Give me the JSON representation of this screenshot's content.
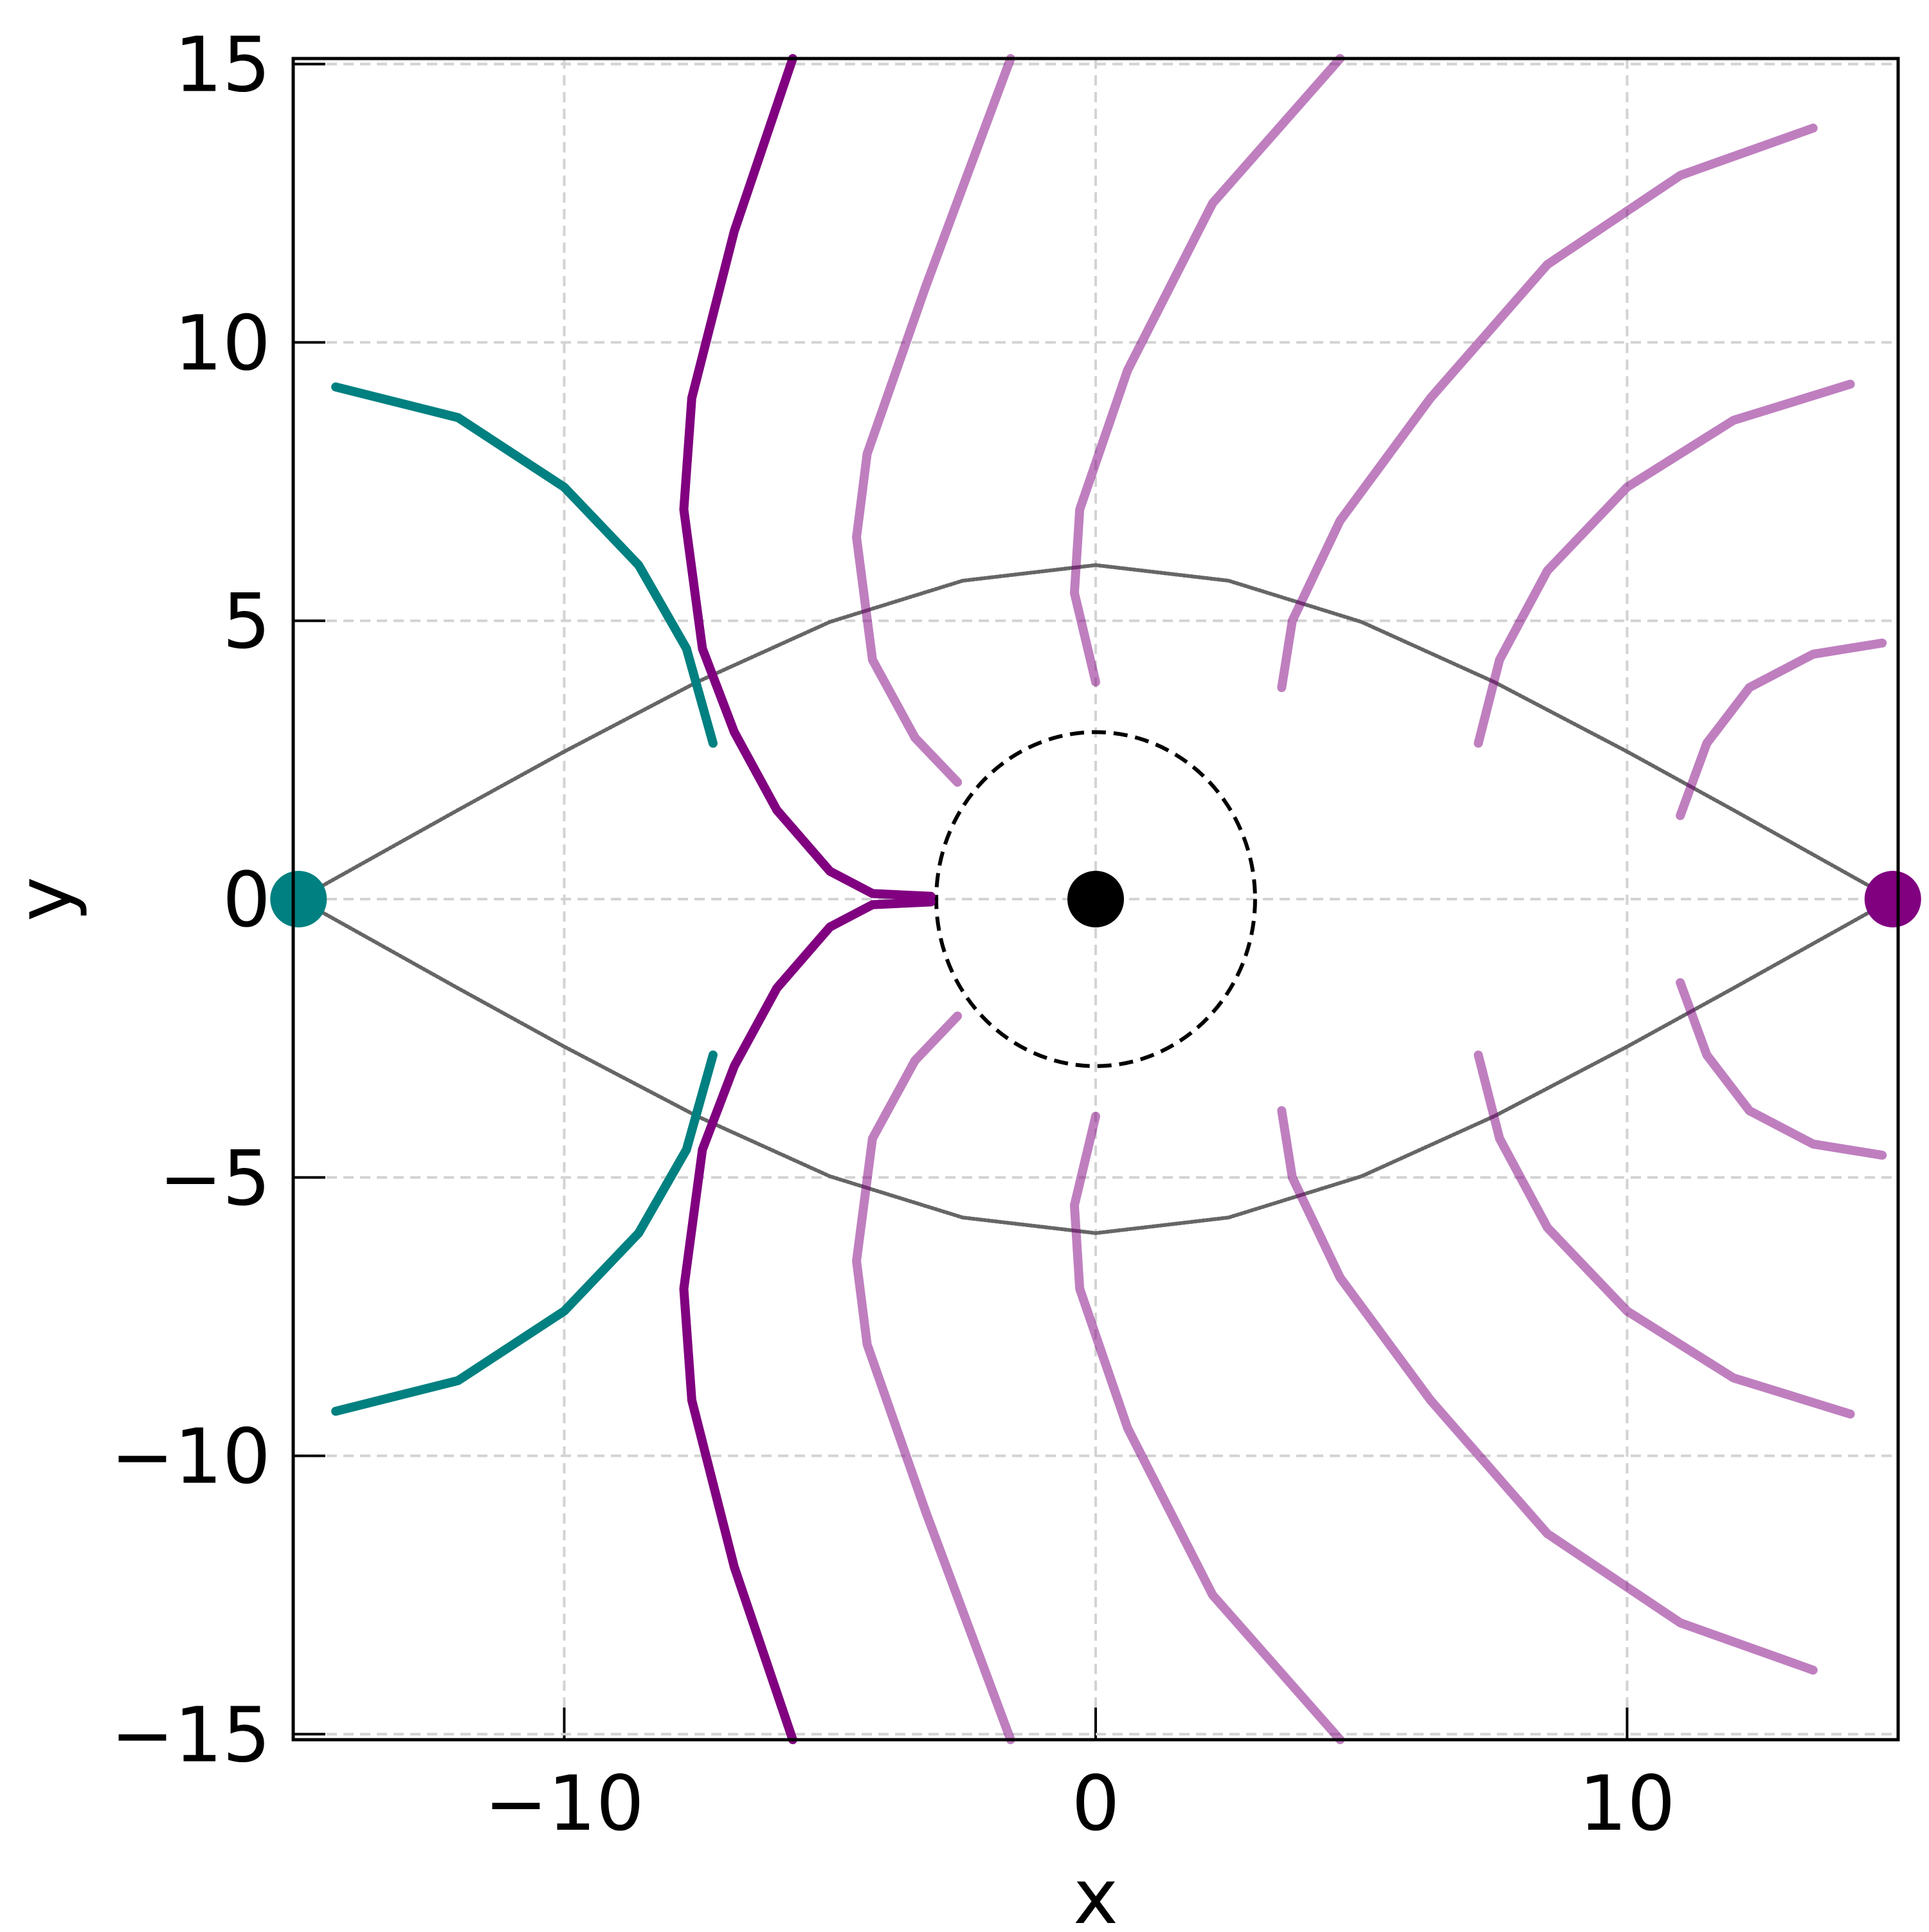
{
  "chart_data": {
    "type": "line",
    "xlabel": "x",
    "ylabel": "y",
    "xlim": [
      -15.1,
      15.1
    ],
    "ylim": [
      -15.1,
      15.1
    ],
    "xticks": [
      {
        "value": -10,
        "label": "−10"
      },
      0,
      10
    ],
    "yticks": [
      {
        "value": -15,
        "label": "−15"
      },
      {
        "value": -10,
        "label": "−10"
      },
      {
        "value": -5,
        "label": "−5"
      },
      0,
      5,
      10,
      15
    ],
    "grid": true,
    "series": [
      {
        "color": "#666666",
        "linestyle": "dotted",
        "x": [
          -15,
          -12,
          -10,
          -7.5,
          -5,
          -2.5,
          0,
          2.5,
          5,
          7.5,
          10,
          12,
          15
        ],
        "y": [
          0,
          1.6,
          2.65,
          3.9,
          4.98,
          5.72,
          6.0,
          5.72,
          4.98,
          3.9,
          2.65,
          1.6,
          0
        ]
      },
      {
        "color": "#666666",
        "linestyle": "dotted",
        "x": [
          -15,
          -12,
          -10,
          -7.5,
          -5,
          -2.5,
          0,
          2.5,
          5,
          7.5,
          10,
          12,
          15
        ],
        "y": [
          0,
          -1.6,
          -2.65,
          -3.9,
          -4.98,
          -5.72,
          -6.0,
          -5.72,
          -4.98,
          -3.9,
          -2.65,
          -1.6,
          0
        ]
      },
      {
        "color": "#008080",
        "x": [
          -14.3,
          -12,
          -10,
          -8.6,
          -7.7,
          -7.2
        ],
        "y": [
          9.2,
          8.65,
          7.4,
          6,
          4.5,
          2.8
        ]
      },
      {
        "color": "#008080",
        "x": [
          -14.3,
          -12,
          -10,
          -8.6,
          -7.7,
          -7.2
        ],
        "y": [
          -9.2,
          -8.65,
          -7.4,
          -6,
          -4.5,
          -2.8
        ]
      },
      {
        "color": "#800080",
        "x": [
          -5.7,
          -6.8,
          -7.6,
          -7.75,
          -7.4,
          -6.8,
          -6.0,
          -5.0,
          -4.2,
          -3.1
        ],
        "y": [
          15.1,
          12,
          9,
          7,
          4.5,
          3,
          1.6,
          0.5,
          0.1,
          0.05
        ]
      },
      {
        "color": "#800080",
        "x": [
          -5.7,
          -6.8,
          -7.6,
          -7.75,
          -7.4,
          -6.8,
          -6.0,
          -5.0,
          -4.2,
          -3.1
        ],
        "y": [
          -15.1,
          -12,
          -9,
          -7,
          -4.5,
          -3,
          -1.6,
          -0.5,
          -0.1,
          -0.05
        ]
      },
      {
        "color": "#800080",
        "alpha": 0.5,
        "x": [
          -1.6,
          -3.2,
          -4.3,
          -4.5,
          -4.2,
          -3.4,
          -2.6
        ],
        "y": [
          15.1,
          11,
          8,
          6.5,
          4.3,
          2.9,
          2.1
        ]
      },
      {
        "color": "#800080",
        "alpha": 0.5,
        "x": [
          -1.6,
          -3.2,
          -4.3,
          -4.5,
          -4.2,
          -3.4,
          -2.6
        ],
        "y": [
          -15.1,
          -11,
          -8,
          -6.5,
          -4.3,
          -2.9,
          -2.1
        ]
      },
      {
        "color": "#800080",
        "alpha": 0.5,
        "x": [
          4.6,
          2.2,
          0.6,
          -0.3,
          -0.4,
          0
        ],
        "y": [
          15.1,
          12.5,
          9.5,
          7,
          5.5,
          3.9
        ]
      },
      {
        "color": "#800080",
        "alpha": 0.5,
        "x": [
          4.6,
          2.2,
          0.6,
          -0.3,
          -0.4,
          0
        ],
        "y": [
          -15.1,
          -12.5,
          -9.5,
          -7,
          -5.5,
          -3.9
        ]
      },
      {
        "color": "#800080",
        "alpha": 0.5,
        "x": [
          13.5,
          11,
          8.5,
          6.3,
          4.6,
          3.7,
          3.5
        ],
        "y": [
          13.85,
          13,
          11.4,
          9,
          6.8,
          5,
          3.8
        ]
      },
      {
        "color": "#800080",
        "alpha": 0.5,
        "x": [
          13.5,
          11,
          8.5,
          6.3,
          4.6,
          3.7,
          3.5
        ],
        "y": [
          -13.85,
          -13,
          -11.4,
          -9,
          -6.8,
          -5,
          -3.8
        ]
      },
      {
        "color": "#800080",
        "alpha": 0.5,
        "x": [
          14.2,
          12,
          10,
          8.5,
          7.6,
          7.2
        ],
        "y": [
          9.25,
          8.6,
          7.4,
          5.9,
          4.3,
          2.8
        ]
      },
      {
        "color": "#800080",
        "alpha": 0.5,
        "x": [
          14.2,
          12,
          10,
          8.5,
          7.6,
          7.2
        ],
        "y": [
          -9.25,
          -8.6,
          -7.4,
          -5.9,
          -4.3,
          -2.8
        ]
      },
      {
        "color": "#800080",
        "alpha": 0.5,
        "x": [
          14.8,
          13.5,
          12.3,
          11.5,
          11
        ],
        "y": [
          4.6,
          4.4,
          3.8,
          2.8,
          1.5
        ]
      },
      {
        "color": "#800080",
        "alpha": 0.5,
        "x": [
          14.8,
          13.5,
          12.3,
          11.5,
          11
        ],
        "y": [
          -4.6,
          -4.4,
          -3.8,
          -2.8,
          -1.5
        ]
      }
    ],
    "circles": [
      {
        "x": 0,
        "y": 0,
        "r": 3,
        "color": "#000000",
        "linestyle": "dashed"
      }
    ],
    "points": [
      {
        "x": -15,
        "y": 0,
        "color": "#008080"
      },
      {
        "x": 15,
        "y": 0,
        "color": "#800080"
      },
      {
        "x": 0,
        "y": 0,
        "color": "#000000"
      }
    ]
  }
}
